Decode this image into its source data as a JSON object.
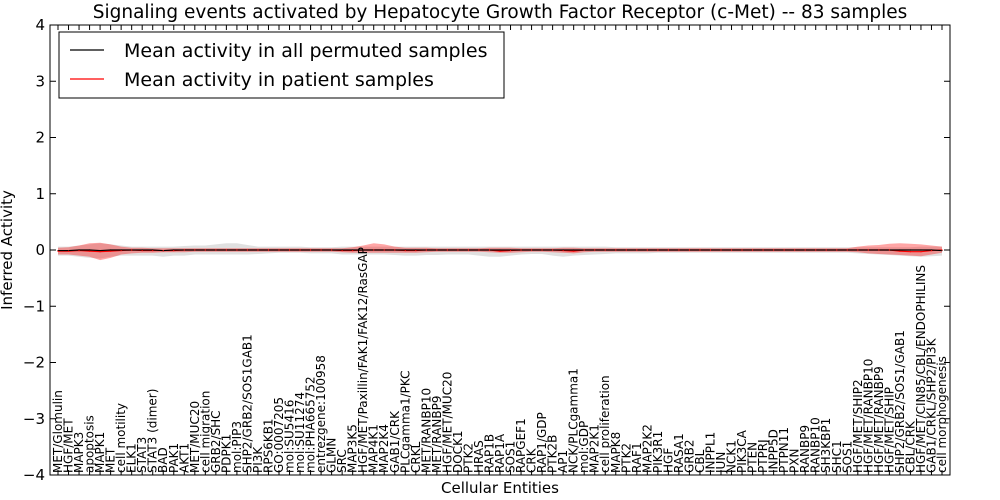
{
  "chart_data": {
    "type": "line",
    "title": "Signaling events activated by Hepatocyte Growth Factor Receptor (c-Met) -- 83 samples",
    "xlabel": "Cellular Entities",
    "ylabel": "Inferred Activity",
    "ylim": [
      -4,
      4
    ],
    "yticks": [
      -4,
      -3,
      -2,
      -1,
      0,
      1,
      2,
      3,
      4
    ],
    "ytick_labels": [
      "−4",
      "−3",
      "−2",
      "−1",
      "0",
      "1",
      "2",
      "3",
      "4"
    ],
    "legend_position": "top-left",
    "categories": [
      "MET/Glomulin",
      "HGF/MET",
      "MAPK3",
      "apoptosis",
      "MAPK1",
      "MET",
      "cell motility",
      "ELK1",
      "STAT3",
      "STAT3 (dimer)",
      "BAD",
      "PAK1",
      "AKT1",
      "MET/MUC20",
      "cell migration",
      "GRB2/SHC",
      "PDPK1",
      "mol:PIP3",
      "SHP2/GRB2/SOS1GAB1",
      "PI3K",
      "RPS6KB1",
      "GO:0007205",
      "mol:SU5416",
      "mol:SU11274",
      "mol:PHA665752",
      "entrezgene:100958",
      "GLMN",
      "SRC",
      "MAP3K5",
      "HGF/MET/Paxillin/FAK1/FAK12/RasGAP",
      "MAP4K1",
      "MAP2K4",
      "GAB1/CRK",
      "PLCgamma1/PKC",
      "CRKL",
      "MET/RANBP10",
      "MET/RANBP9",
      "HGF/MET/MUC20",
      "DOCK1",
      "PTK2",
      "HRAS",
      "RAP1B",
      "RAP1A",
      "SOS1",
      "RAPGEF1",
      "CRK",
      "RAP1/GDP",
      "PTK2B",
      "AP1",
      "NCK/PLCgamma1",
      "mol:GDP",
      "MAP2K1",
      "cell proliferation",
      "MAPK8",
      "PTK2",
      "RAF1",
      "MAP2K2",
      "PIK3R1",
      "HGF",
      "RASA1",
      "GRB2",
      "CBL",
      "INPPL1",
      "JUN",
      "NCK1",
      "PIK3CA",
      "PTEN",
      "PTPRJ",
      "INPP5D",
      "PTPN11",
      "PXN",
      "RANBP9",
      "RANBP10",
      "SH3KBP1",
      "SHC1",
      "SOS1",
      "HGF/MET/SHIP2",
      "HGF/MET/RANBP10",
      "HGF/MET/RANBP9",
      "HGF/MET/SHIP",
      "SHP2/GRB2/SOS1/GAB1",
      "CBL/CRK",
      "HGF/MET/CIN85/CBL/ENDOPHILINS",
      "GAB1/CRKL/SHP2/PI3K",
      "cell morphogenesis"
    ],
    "series": [
      {
        "name": "Mean activity in all permuted samples",
        "color": "#000000",
        "values": [
          -0.01,
          -0.01,
          0,
          0,
          -0.01,
          0,
          0,
          0,
          0,
          0,
          -0.01,
          0,
          0,
          0,
          0,
          0,
          0,
          0,
          0,
          0,
          0,
          0,
          0,
          0,
          0,
          0,
          0,
          0,
          0,
          0,
          0,
          0,
          0,
          0,
          0,
          0,
          0,
          0,
          0,
          0,
          0,
          0,
          0,
          0,
          0,
          0,
          0,
          0,
          0,
          0,
          0,
          0,
          0,
          0,
          0,
          0,
          0,
          0,
          0,
          0,
          0,
          0,
          0,
          0,
          0,
          0,
          0,
          0,
          0,
          0,
          0,
          0,
          0,
          0,
          0,
          0,
          0,
          0,
          0,
          0,
          0,
          0,
          0,
          0,
          -0.01
        ],
        "band_lower": [
          -0.1,
          -0.1,
          -0.12,
          -0.14,
          -0.15,
          -0.12,
          -0.1,
          -0.1,
          -0.1,
          -0.1,
          -0.12,
          -0.1,
          -0.1,
          -0.08,
          -0.08,
          -0.08,
          -0.08,
          -0.08,
          -0.08,
          -0.07,
          -0.06,
          -0.05,
          -0.05,
          -0.05,
          -0.06,
          -0.06,
          -0.06,
          -0.08,
          -0.08,
          -0.08,
          -0.08,
          -0.08,
          -0.09,
          -0.1,
          -0.1,
          -0.09,
          -0.09,
          -0.08,
          -0.08,
          -0.08,
          -0.1,
          -0.12,
          -0.12,
          -0.1,
          -0.08,
          -0.07,
          -0.07,
          -0.1,
          -0.12,
          -0.1,
          -0.09,
          -0.08,
          -0.07,
          -0.06,
          -0.06,
          -0.06,
          -0.06,
          -0.05,
          -0.05,
          -0.05,
          -0.05,
          -0.05,
          -0.05,
          -0.05,
          -0.05,
          -0.05,
          -0.05,
          -0.05,
          -0.05,
          -0.05,
          -0.05,
          -0.05,
          -0.05,
          -0.05,
          -0.05,
          -0.05,
          -0.06,
          -0.07,
          -0.08,
          -0.09,
          -0.1,
          -0.11,
          -0.12,
          -0.11,
          -0.1
        ],
        "band_upper": [
          0.06,
          0.06,
          0.08,
          0.1,
          0.12,
          0.1,
          0.08,
          0.06,
          0.06,
          0.06,
          0.06,
          0.06,
          0.07,
          0.08,
          0.08,
          0.1,
          0.12,
          0.12,
          0.09,
          0.06,
          0.06,
          0.06,
          0.06,
          0.06,
          0.05,
          0.05,
          0.05,
          0.06,
          0.06,
          0.06,
          0.06,
          0.06,
          0.06,
          0.06,
          0.06,
          0.06,
          0.06,
          0.06,
          0.06,
          0.06,
          0.06,
          0.06,
          0.06,
          0.06,
          0.06,
          0.06,
          0.06,
          0.06,
          0.06,
          0.06,
          0.06,
          0.06,
          0.06,
          0.05,
          0.05,
          0.05,
          0.05,
          0.05,
          0.05,
          0.05,
          0.05,
          0.05,
          0.05,
          0.05,
          0.05,
          0.05,
          0.05,
          0.05,
          0.05,
          0.05,
          0.05,
          0.05,
          0.05,
          0.05,
          0.05,
          0.05,
          0.05,
          0.05,
          0.05,
          0.05,
          0.05,
          0.05,
          0.06,
          0.06,
          0.06
        ]
      },
      {
        "name": "Mean activity in patient samples",
        "color": "#ff0000",
        "values": [
          -0.02,
          -0.02,
          -0.01,
          -0.02,
          -0.03,
          -0.02,
          -0.01,
          0,
          -0.01,
          -0.01,
          -0.01,
          -0.01,
          0,
          0,
          0,
          0,
          0,
          0,
          0,
          0,
          0,
          0,
          0,
          0,
          0,
          0,
          0,
          -0.01,
          -0.01,
          0,
          0,
          0,
          0,
          -0.01,
          -0.01,
          0,
          0,
          0,
          0,
          0,
          0,
          0,
          -0.02,
          -0.01,
          0,
          0,
          0,
          0,
          -0.01,
          -0.02,
          0,
          0,
          0,
          0,
          0,
          0,
          0,
          0,
          0,
          0,
          0,
          0,
          0,
          0,
          0,
          0,
          0,
          0,
          0,
          0,
          0,
          0,
          0,
          0,
          0,
          0,
          0,
          0,
          0,
          0,
          -0.02,
          -0.03,
          -0.03,
          -0.01,
          0
        ],
        "band_lower": [
          -0.08,
          -0.08,
          -0.1,
          -0.12,
          -0.18,
          -0.14,
          -0.08,
          -0.06,
          -0.05,
          -0.05,
          -0.04,
          -0.04,
          -0.04,
          -0.03,
          -0.03,
          -0.03,
          -0.03,
          -0.03,
          -0.03,
          -0.03,
          -0.03,
          -0.03,
          -0.03,
          -0.03,
          -0.03,
          -0.03,
          -0.03,
          -0.04,
          -0.05,
          -0.05,
          -0.05,
          -0.05,
          -0.05,
          -0.05,
          -0.05,
          -0.04,
          -0.03,
          -0.03,
          -0.03,
          -0.03,
          -0.03,
          -0.04,
          -0.05,
          -0.05,
          -0.04,
          -0.03,
          -0.03,
          -0.04,
          -0.05,
          -0.06,
          -0.04,
          -0.03,
          -0.03,
          -0.03,
          -0.03,
          -0.03,
          -0.03,
          -0.03,
          -0.03,
          -0.03,
          -0.03,
          -0.03,
          -0.03,
          -0.03,
          -0.03,
          -0.03,
          -0.03,
          -0.03,
          -0.03,
          -0.03,
          -0.03,
          -0.03,
          -0.03,
          -0.03,
          -0.03,
          -0.03,
          -0.04,
          -0.06,
          -0.07,
          -0.08,
          -0.09,
          -0.1,
          -0.11,
          -0.08,
          -0.05
        ],
        "band_upper": [
          0.04,
          0.05,
          0.08,
          0.12,
          0.13,
          0.1,
          0.06,
          0.04,
          0.04,
          0.03,
          0.03,
          0.03,
          0.03,
          0.03,
          0.03,
          0.03,
          0.03,
          0.03,
          0.03,
          0.03,
          0.03,
          0.03,
          0.03,
          0.03,
          0.03,
          0.03,
          0.03,
          0.03,
          0.05,
          0.08,
          0.12,
          0.1,
          0.06,
          0.04,
          0.04,
          0.04,
          0.03,
          0.03,
          0.03,
          0.03,
          0.03,
          0.04,
          0.04,
          0.04,
          0.03,
          0.03,
          0.03,
          0.03,
          0.04,
          0.04,
          0.03,
          0.03,
          0.03,
          0.03,
          0.03,
          0.03,
          0.03,
          0.03,
          0.03,
          0.03,
          0.03,
          0.03,
          0.03,
          0.03,
          0.03,
          0.03,
          0.03,
          0.03,
          0.03,
          0.03,
          0.03,
          0.03,
          0.03,
          0.03,
          0.03,
          0.03,
          0.06,
          0.08,
          0.09,
          0.11,
          0.12,
          0.11,
          0.1,
          0.08,
          0.06
        ]
      }
    ]
  }
}
